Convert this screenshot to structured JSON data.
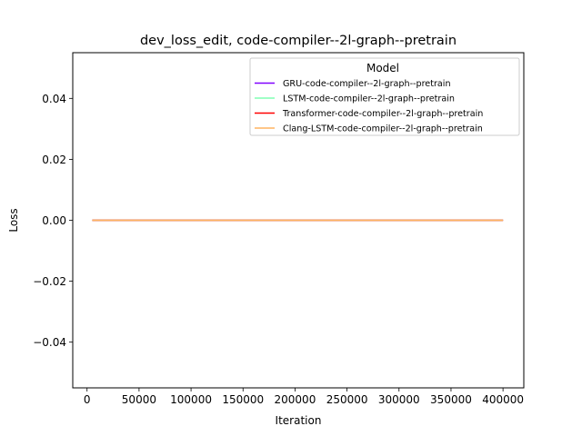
{
  "chart_data": {
    "type": "line",
    "title": "dev_loss_edit, code-compiler--2l-graph--pretrain",
    "xlabel": "Iteration",
    "ylabel": "Loss",
    "xlim": [
      -13750,
      420000
    ],
    "ylim": [
      -0.055,
      0.055
    ],
    "x_ticks": [
      0,
      50000,
      100000,
      150000,
      200000,
      250000,
      300000,
      350000,
      400000
    ],
    "y_ticks": [
      -0.04,
      -0.02,
      0.0,
      0.02,
      0.04
    ],
    "y_tick_labels": [
      "−0.04",
      "−0.02",
      "0.00",
      "0.02",
      "0.04"
    ],
    "grid": false,
    "legend": {
      "title": "Model",
      "placement": "top-right"
    },
    "series": [
      {
        "name": "GRU-code-compiler--2l-graph--pretrain",
        "color": "#8000ff",
        "x": [
          5000,
          400000
        ],
        "y": [
          0.0,
          0.0
        ]
      },
      {
        "name": "LSTM-code-compiler--2l-graph--pretrain",
        "color": "#80ffb4",
        "x": [
          5000,
          400000
        ],
        "y": [
          0.0,
          0.0
        ]
      },
      {
        "name": "Transformer-code-compiler--2l-graph--pretrain",
        "color": "#ff0000",
        "x": [
          5000,
          400000
        ],
        "y": [
          0.0,
          0.0
        ]
      },
      {
        "name": "Clang-LSTM-code-compiler--2l-graph--pretrain",
        "color": "#ffb360",
        "x": [
          5000,
          400000
        ],
        "y": [
          0.0,
          0.0
        ]
      }
    ]
  }
}
